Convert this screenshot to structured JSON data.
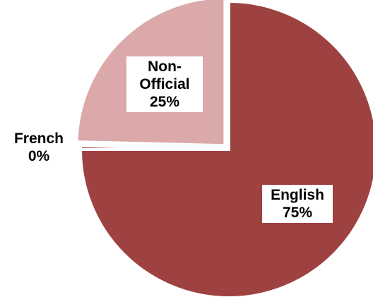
{
  "chart_data": {
    "type": "pie",
    "title": "",
    "slices": [
      {
        "label": "English",
        "value": 75,
        "display": "English\n75%",
        "color": "#9e4141"
      },
      {
        "label": "French",
        "value": 0.4,
        "display": "French\n0%",
        "color": "#9e4141"
      },
      {
        "label": "Non-Official",
        "value": 24.6,
        "display": "Non-\nOfficial\n25%",
        "color": "#dba9a9"
      }
    ],
    "start_angle_deg": 0,
    "direction": "clockwise"
  }
}
